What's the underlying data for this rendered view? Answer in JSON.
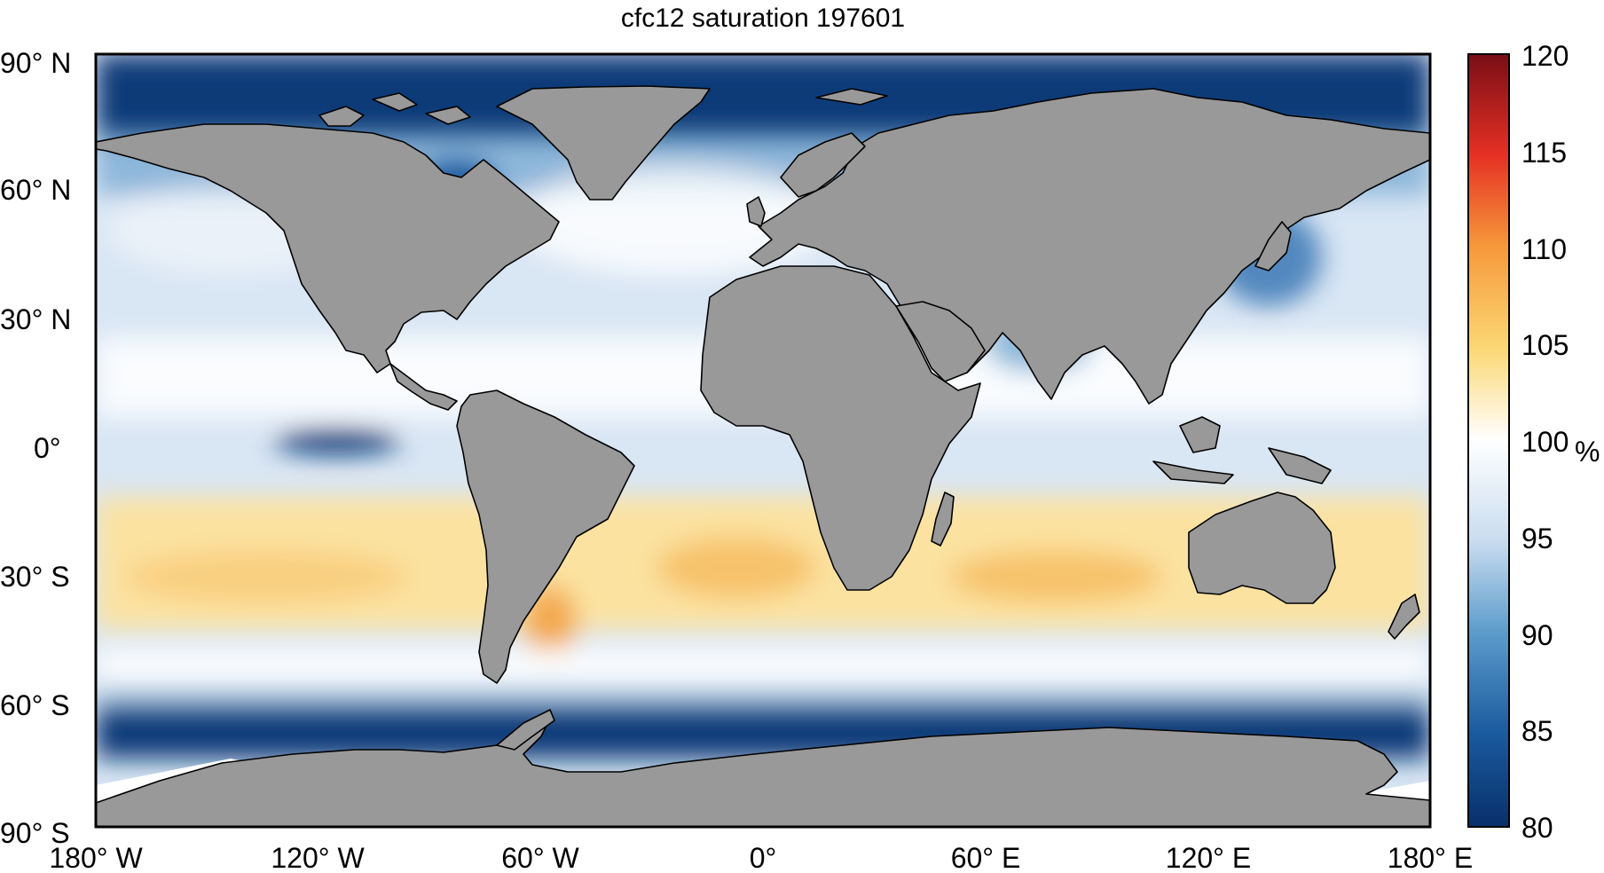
{
  "title": "cfc12 saturation 197601",
  "axes": {
    "lat_ticks": [
      "90° N",
      "60° N",
      "30° N",
      "0°",
      "30° S",
      "60° S",
      "90° S"
    ],
    "lon_ticks": [
      "180° W",
      "120° W",
      "60° W",
      "0°",
      "60° E",
      "120° E",
      "180° E"
    ]
  },
  "colorbar": {
    "ticks": [
      "80",
      "85",
      "90",
      "95",
      "100",
      "105",
      "110",
      "115",
      "120"
    ],
    "unit": "%",
    "range": [
      80,
      120
    ],
    "colors": {
      "80": "#08306b",
      "85": "#1a5a9e",
      "90": "#5b9bcb",
      "95": "#c9dcef",
      "100": "#ffffff",
      "105": "#fbd774",
      "110": "#f6993b",
      "115": "#e53024",
      "120": "#7a0e17"
    }
  },
  "map_colors": {
    "land": "#999999",
    "coast": "#000000"
  }
}
